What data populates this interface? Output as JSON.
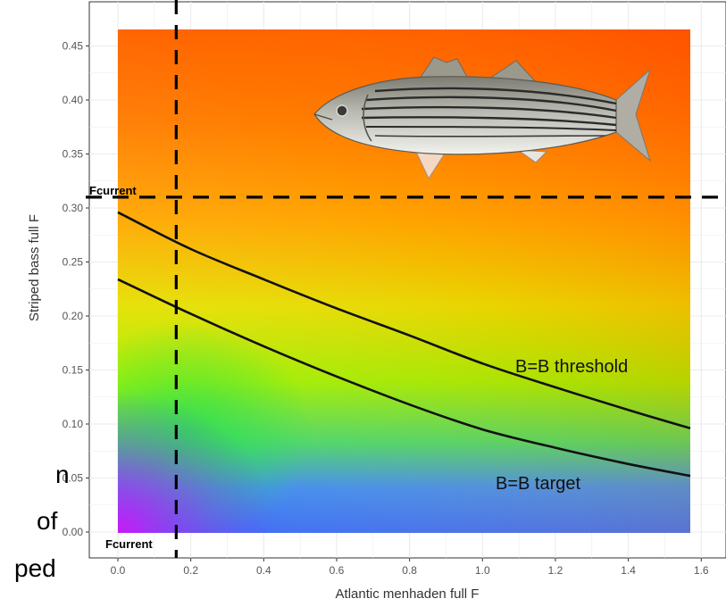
{
  "chart_data": {
    "type": "heatmap",
    "xlabel": "Atlantic menhaden full F",
    "ylabel": "Striped bass full F",
    "xlim": [
      -0.08,
      1.65
    ],
    "ylim": [
      -0.025,
      0.485
    ],
    "x_ticks": [
      0.0,
      0.2,
      0.4,
      0.6,
      0.8,
      1.0,
      1.2,
      1.4,
      1.6
    ],
    "x_tick_labels": [
      "0.0",
      "0.2",
      "0.4",
      "0.6",
      "0.8",
      "1.0",
      "1.2",
      "1.4",
      "1.6"
    ],
    "y_ticks": [
      0.0,
      0.05,
      0.1,
      0.15,
      0.2,
      0.25,
      0.3,
      0.35,
      0.4,
      0.45
    ],
    "y_tick_labels": [
      "0.00",
      "0.05",
      "0.10",
      "0.15",
      "0.20",
      "0.25",
      "0.30",
      "0.35",
      "0.40",
      "0.45"
    ],
    "raster_extent": {
      "x": [
        0.0,
        1.57
      ],
      "y": [
        0.0,
        0.465
      ]
    },
    "grid": true,
    "reference_lines": [
      {
        "orientation": "vertical",
        "value": 0.16,
        "style": "dashed",
        "label": "Fcurrent"
      },
      {
        "orientation": "horizontal",
        "value": 0.31,
        "style": "dashed",
        "label": "Fcurrent"
      }
    ],
    "series": [
      {
        "name": "B=B threshold",
        "x": [
          0.0,
          0.2,
          0.4,
          0.6,
          0.8,
          1.0,
          1.2,
          1.4,
          1.57
        ],
        "y": [
          0.296,
          0.262,
          0.234,
          0.207,
          0.182,
          0.156,
          0.134,
          0.113,
          0.096
        ]
      },
      {
        "name": "B=B target",
        "x": [
          0.0,
          0.2,
          0.4,
          0.6,
          0.8,
          1.0,
          1.2,
          1.4,
          1.57
        ],
        "y": [
          0.234,
          0.202,
          0.172,
          0.144,
          0.118,
          0.095,
          0.078,
          0.063,
          0.052
        ]
      }
    ],
    "colors": {
      "heat_stops": [
        "#ff5500",
        "#ff6e00",
        "#ff9800",
        "#f4c000",
        "#dcea00",
        "#b8f000",
        "#8ef400",
        "#33e84a",
        "#44a0ff",
        "#3a5ff0",
        "#c81ef5"
      ],
      "curve": "#111111",
      "refline": "#000000",
      "panel_grid": "#ebebeb"
    }
  },
  "labels": {
    "fcurrent_v": "Fcurrent",
    "fcurrent_h": "Fcurrent"
  },
  "illustration": {
    "icon": "striped-bass-fish-icon"
  },
  "cropped_side_text": [
    "n",
    "of",
    "ped"
  ]
}
